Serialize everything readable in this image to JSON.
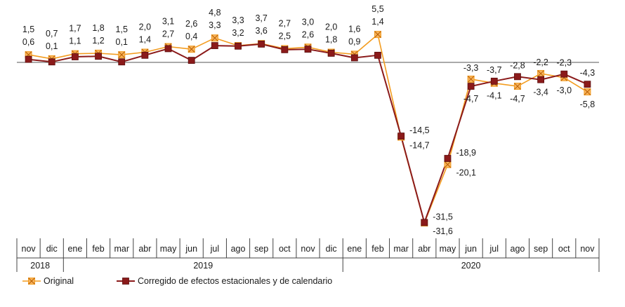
{
  "chart_data": {
    "type": "line",
    "categories": [
      "nov",
      "dic",
      "ene",
      "feb",
      "mar",
      "abr",
      "may",
      "jun",
      "jul",
      "ago",
      "sep",
      "oct",
      "nov",
      "dic",
      "ene",
      "feb",
      "mar",
      "abr",
      "may",
      "jun",
      "jul",
      "ago",
      "sep",
      "oct",
      "nov"
    ],
    "years": [
      {
        "label": "2018",
        "start": 0,
        "end": 1
      },
      {
        "label": "2019",
        "start": 2,
        "end": 13
      },
      {
        "label": "2020",
        "start": 14,
        "end": 24
      }
    ],
    "series": [
      {
        "name": "Original",
        "color": "#F39C1F",
        "marker": "square-x",
        "values": [
          1.5,
          0.7,
          1.7,
          1.8,
          1.5,
          2.0,
          3.1,
          2.6,
          4.8,
          3.3,
          3.7,
          2.7,
          3.0,
          2.0,
          1.6,
          5.5,
          -14.7,
          -31.6,
          -20.1,
          -3.3,
          -4.1,
          -4.7,
          -2.2,
          -3.0,
          -5.8
        ],
        "labels": [
          "1,5",
          "0,7",
          "1,7",
          "1,8",
          "1,5",
          "2,0",
          "3,1",
          "2,6",
          "4,8",
          "3,3",
          "3,7",
          "2,7",
          "3,0",
          "2,0",
          "1,6",
          "5,5",
          "-14,7",
          "-31,6",
          "-20,1",
          "-3,3",
          "-4,1",
          "-4,7",
          "-2,2",
          "-3,0",
          "-5,8"
        ]
      },
      {
        "name": "Corregido de efectos estacionales y de calendario",
        "color": "#8B1A1A",
        "marker": "square",
        "values": [
          0.6,
          0.1,
          1.1,
          1.2,
          0.1,
          1.4,
          2.7,
          0.4,
          3.3,
          3.2,
          3.6,
          2.5,
          2.6,
          1.8,
          0.9,
          1.4,
          -14.5,
          -31.5,
          -18.9,
          -4.7,
          -3.7,
          -2.8,
          -3.4,
          -2.3,
          -4.3
        ],
        "labels": [
          "0,6",
          "0,1",
          "1,1",
          "1,2",
          "0,1",
          "1,4",
          "2,7",
          "0,4",
          "3,3",
          "3,2",
          "3,6",
          "2,5",
          "2,6",
          "1,8",
          "0,9",
          "1,4",
          "-14,5",
          "-31,5",
          "-18,9",
          "-4,7",
          "-3,7",
          "-2,8",
          "-3,4",
          "-2,3",
          "-4,3"
        ]
      }
    ],
    "ylim": [
      -33,
      6
    ],
    "grid": false,
    "legend_position": "bottom-left",
    "title": "",
    "xlabel": "",
    "ylabel": ""
  }
}
